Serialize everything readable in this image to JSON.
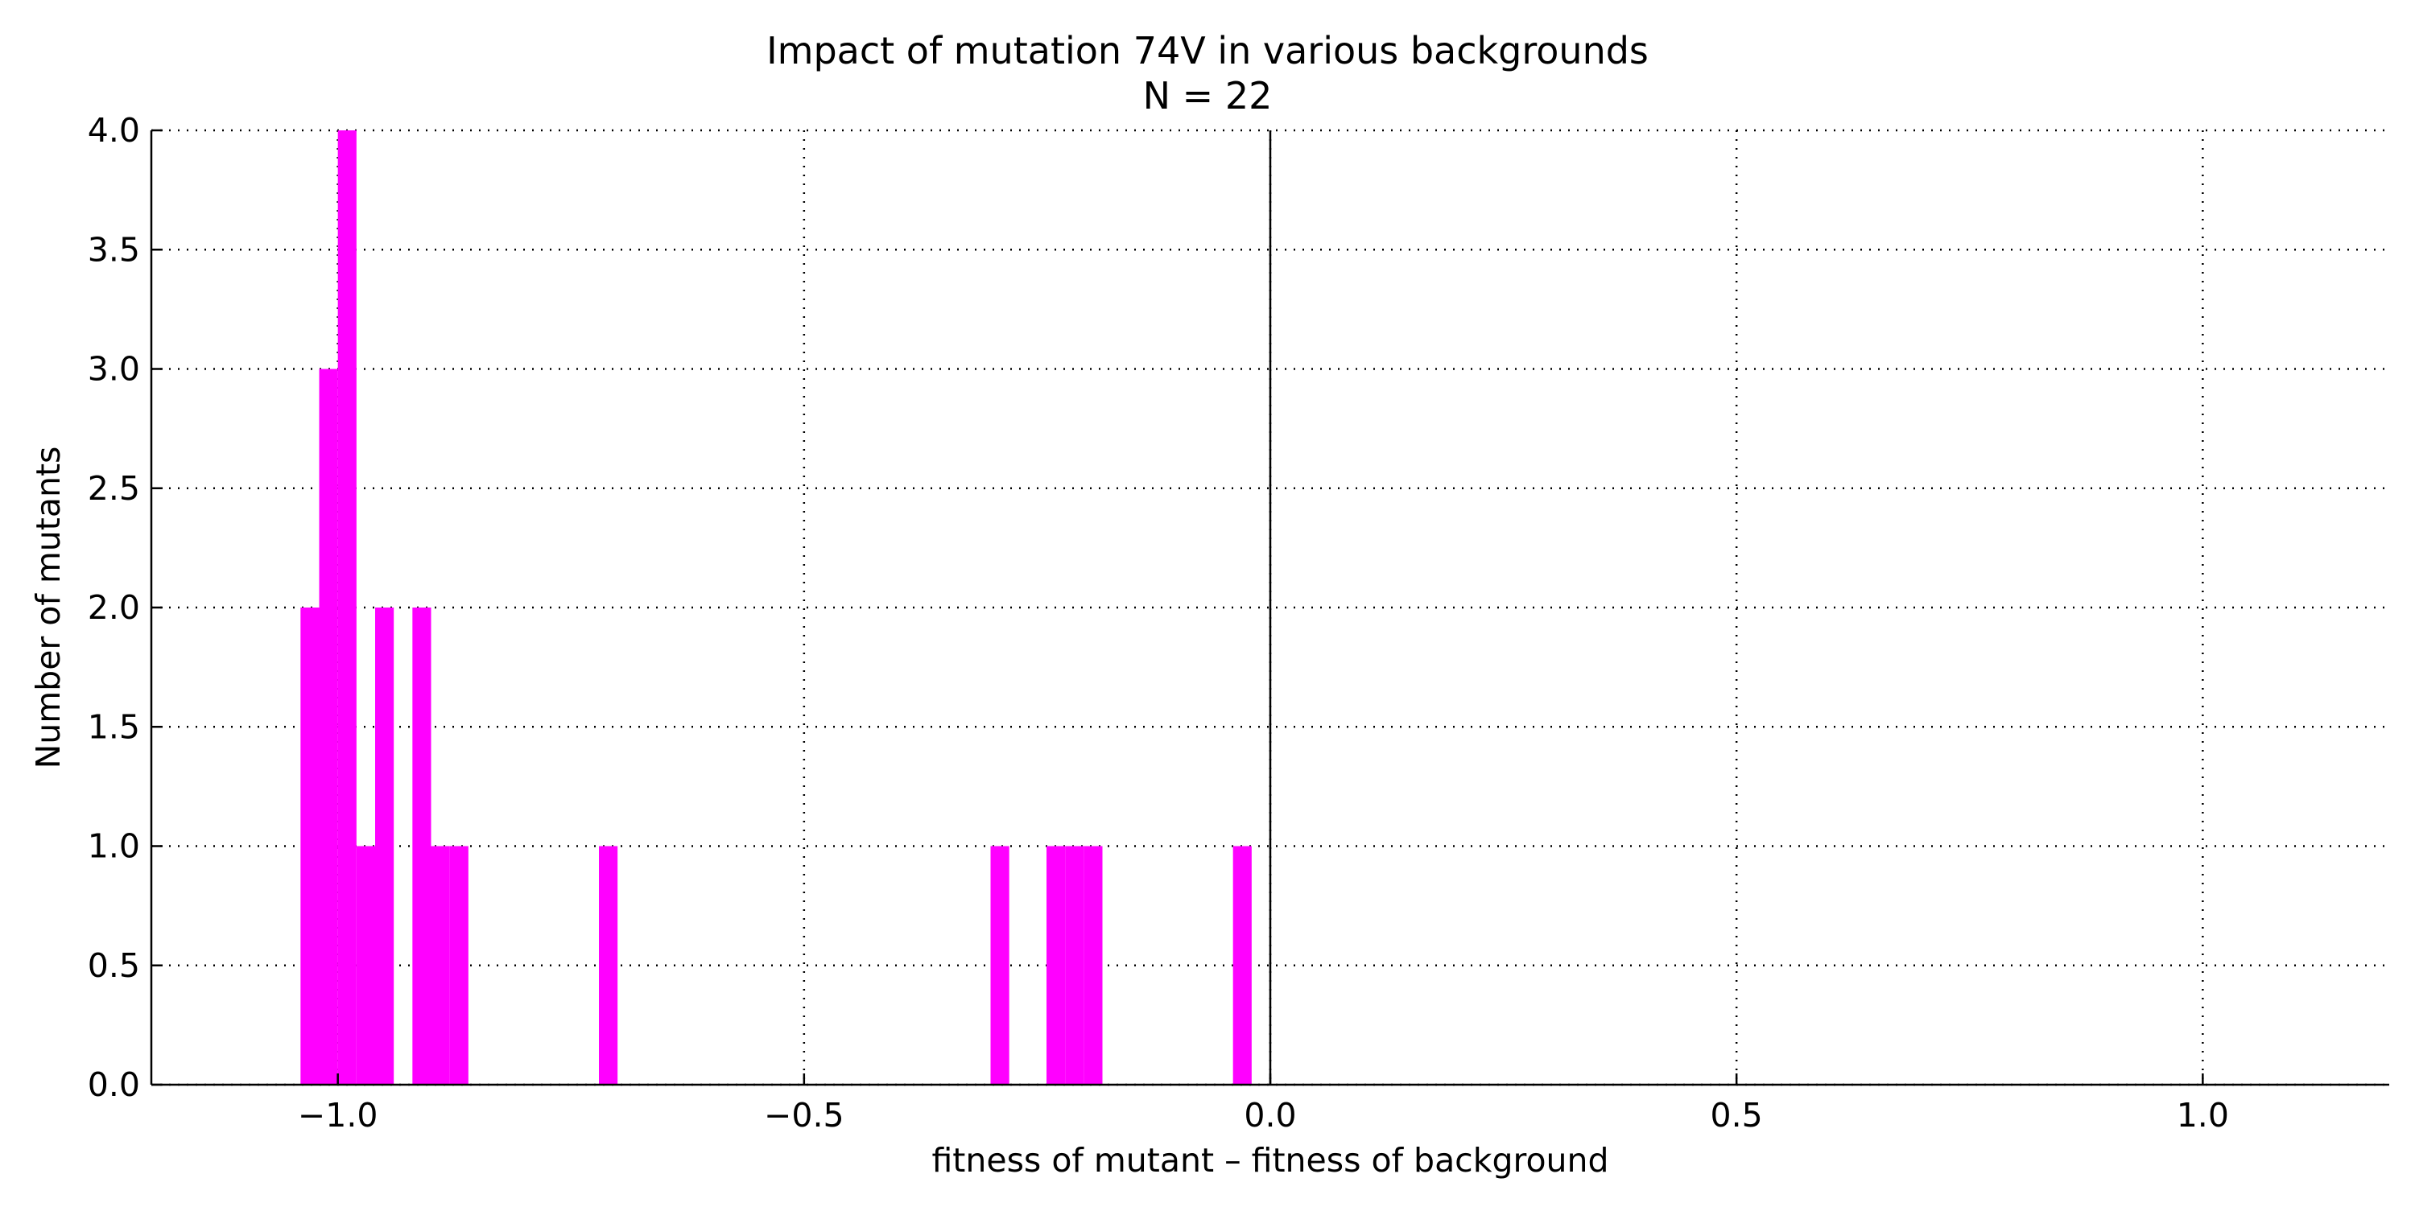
{
  "chart_data": {
    "type": "bar",
    "title": "Impact of mutation 74V in various backgrounds",
    "subtitle": "N = 22",
    "xlabel": "fitness of mutant  –  fitness of background",
    "ylabel": "Number of mutants",
    "xlim": [
      -1.2,
      1.2
    ],
    "ylim": [
      0,
      4.0
    ],
    "grid": true,
    "bin_width": 0.02,
    "bar_color": "#ff00ff",
    "reference_line_x": 0.0,
    "x_ticks": [
      {
        "value": -1.0,
        "label": "−1.0"
      },
      {
        "value": -0.5,
        "label": "−0.5"
      },
      {
        "value": 0.0,
        "label": "0.0"
      },
      {
        "value": 0.5,
        "label": "0.5"
      },
      {
        "value": 1.0,
        "label": "1.0"
      }
    ],
    "y_ticks": [
      {
        "value": 0.0,
        "label": "0.0"
      },
      {
        "value": 0.5,
        "label": "0.5"
      },
      {
        "value": 1.0,
        "label": "1.0"
      },
      {
        "value": 1.5,
        "label": "1.5"
      },
      {
        "value": 2.0,
        "label": "2.0"
      },
      {
        "value": 2.5,
        "label": "2.5"
      },
      {
        "value": 3.0,
        "label": "3.0"
      },
      {
        "value": 3.5,
        "label": "3.5"
      },
      {
        "value": 4.0,
        "label": "4.0"
      }
    ],
    "bins": [
      {
        "start": -1.04,
        "end": -1.02,
        "count": 2
      },
      {
        "start": -1.02,
        "end": -1.0,
        "count": 3
      },
      {
        "start": -1.0,
        "end": -0.98,
        "count": 4
      },
      {
        "start": -0.98,
        "end": -0.96,
        "count": 1
      },
      {
        "start": -0.96,
        "end": -0.94,
        "count": 2
      },
      {
        "start": -0.92,
        "end": -0.9,
        "count": 2
      },
      {
        "start": -0.9,
        "end": -0.88,
        "count": 1
      },
      {
        "start": -0.88,
        "end": -0.86,
        "count": 1
      },
      {
        "start": -0.72,
        "end": -0.7,
        "count": 1
      },
      {
        "start": -0.3,
        "end": -0.28,
        "count": 1
      },
      {
        "start": -0.24,
        "end": -0.22,
        "count": 1
      },
      {
        "start": -0.22,
        "end": -0.2,
        "count": 1
      },
      {
        "start": -0.2,
        "end": -0.18,
        "count": 1
      },
      {
        "start": -0.04,
        "end": -0.02,
        "count": 1
      }
    ]
  }
}
